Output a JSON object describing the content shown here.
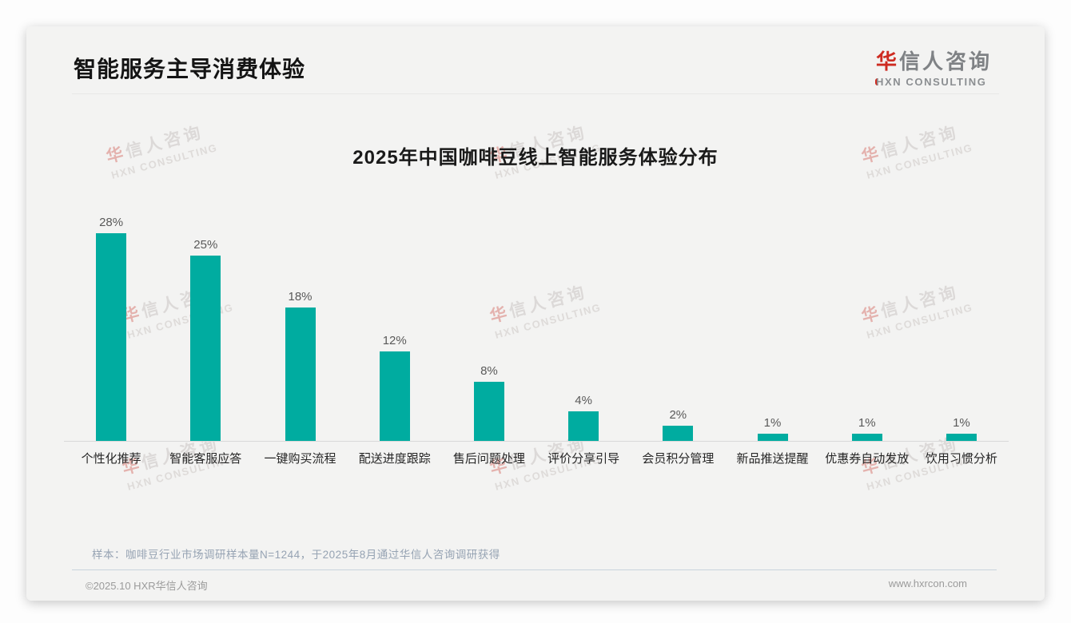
{
  "header": {
    "title": "智能服务主导消费体验"
  },
  "logo": {
    "name_first": "华",
    "name_rest": "信人咨询",
    "sub": "HXN CONSULTING"
  },
  "chart_data": {
    "type": "bar",
    "title": "2025年中国咖啡豆线上智能服务体验分布",
    "categories": [
      "个性化推荐",
      "智能客服应答",
      "一键购买流程",
      "配送进度跟踪",
      "售后问题处理",
      "评价分享引导",
      "会员积分管理",
      "新品推送提醒",
      "优惠券自动发放",
      "饮用习惯分析"
    ],
    "values": [
      28,
      25,
      18,
      12,
      8,
      4,
      2,
      1,
      1,
      1
    ],
    "value_suffix": "%",
    "xlabel": "",
    "ylabel": "",
    "ylim": [
      0,
      31
    ],
    "grid": false,
    "legend": false,
    "bar_color": "#00ACA0"
  },
  "note": {
    "text": "样本：咖啡豆行业市场调研样本量N=1244，于2025年8月通过华信人咨询调研获得"
  },
  "footer": {
    "copyright": "©2025.10 HXR华信人咨询",
    "website": "www.hxrcon.com"
  },
  "watermark": {
    "line1_first": "华",
    "line1_rest": "信人咨询",
    "line2": "HXN CONSULTING"
  },
  "colors": {
    "bar": "#00ACA0",
    "accent_red": "#CE2B21",
    "card_background": "#F3F3F2"
  }
}
